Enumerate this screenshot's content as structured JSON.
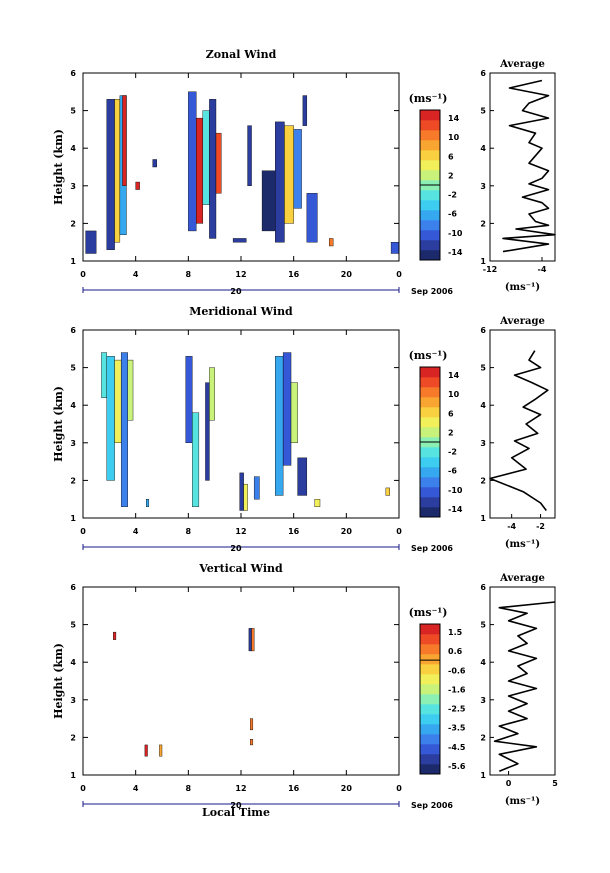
{
  "chart_data": [
    {
      "type": "heatmap",
      "id": "zonal",
      "title": "Zonal Wind",
      "ylabel": "Height (km)",
      "xlim": [
        0,
        24
      ],
      "ylim": [
        1,
        6
      ],
      "xticks": [
        "0",
        "4",
        "8",
        "12",
        "16",
        "20",
        "0"
      ],
      "yticks": [
        "1",
        "2",
        "3",
        "4",
        "5",
        "6"
      ],
      "date_label": "20",
      "month_label": "Sep 2006",
      "colorbar": {
        "unit": "(ms⁻¹)",
        "ticks": [
          "14",
          "10",
          "6",
          "2",
          "-2",
          "-6",
          "-10",
          "-14"
        ],
        "min": -16,
        "max": 16
      },
      "blocks": [
        {
          "x": [
            0.2,
            1.0
          ],
          "y": [
            1.2,
            1.8
          ],
          "v": -12
        },
        {
          "x": [
            1.8,
            2.4
          ],
          "y": [
            1.3,
            5.3
          ],
          "v": -12
        },
        {
          "x": [
            2.4,
            2.8
          ],
          "y": [
            1.5,
            5.3
          ],
          "v": 6
        },
        {
          "x": [
            2.8,
            3.3
          ],
          "y": [
            1.7,
            5.4
          ],
          "v": -6
        },
        {
          "x": [
            3.0,
            3.3
          ],
          "y": [
            3.0,
            5.4
          ],
          "v": 16
        },
        {
          "x": [
            4.0,
            4.3
          ],
          "y": [
            2.9,
            3.1
          ],
          "v": 14
        },
        {
          "x": [
            5.3,
            5.6
          ],
          "y": [
            3.5,
            3.7
          ],
          "v": -12
        },
        {
          "x": [
            8.0,
            8.6
          ],
          "y": [
            1.8,
            5.5
          ],
          "v": -10
        },
        {
          "x": [
            8.6,
            9.1
          ],
          "y": [
            2.0,
            4.8
          ],
          "v": 16
        },
        {
          "x": [
            9.1,
            9.6
          ],
          "y": [
            2.5,
            5.0
          ],
          "v": -2
        },
        {
          "x": [
            9.6,
            10.1
          ],
          "y": [
            1.6,
            5.3
          ],
          "v": -12
        },
        {
          "x": [
            10.1,
            10.5
          ],
          "y": [
            2.8,
            4.4
          ],
          "v": 12
        },
        {
          "x": [
            11.4,
            12.4
          ],
          "y": [
            1.5,
            1.6
          ],
          "v": -12
        },
        {
          "x": [
            12.5,
            12.8
          ],
          "y": [
            3.0,
            4.6
          ],
          "v": -12
        },
        {
          "x": [
            13.6,
            14.6
          ],
          "y": [
            1.8,
            3.4
          ],
          "v": -14
        },
        {
          "x": [
            14.6,
            15.3
          ],
          "y": [
            1.5,
            4.7
          ],
          "v": -12
        },
        {
          "x": [
            15.3,
            16.0
          ],
          "y": [
            2.0,
            4.6
          ],
          "v": 6
        },
        {
          "x": [
            16.0,
            16.6
          ],
          "y": [
            2.4,
            4.5
          ],
          "v": -8
        },
        {
          "x": [
            16.7,
            17.0
          ],
          "y": [
            4.6,
            5.4
          ],
          "v": -12
        },
        {
          "x": [
            17.0,
            17.8
          ],
          "y": [
            1.5,
            2.8
          ],
          "v": -10
        },
        {
          "x": [
            18.7,
            19.0
          ],
          "y": [
            1.4,
            1.6
          ],
          "v": 10
        },
        {
          "x": [
            23.4,
            24.0
          ],
          "y": [
            1.2,
            1.5
          ],
          "v": -10
        }
      ],
      "profile": {
        "title": "Average",
        "xlabel": "(ms⁻¹)",
        "xlim": [
          -12,
          -2
        ],
        "xticks": [
          "-12",
          "-4"
        ],
        "yticks": [
          "1",
          "2",
          "3",
          "4",
          "5",
          "6"
        ],
        "x": [
          -10,
          -3,
          -10,
          -2,
          -8,
          -3,
          -5,
          -6,
          -3,
          -4,
          -7,
          -3,
          -6,
          -4,
          -3,
          -6,
          -5,
          -4,
          -6,
          -5,
          -9,
          -3,
          -7,
          -6,
          -3,
          -9,
          -4
        ],
        "y": [
          1.25,
          1.45,
          1.6,
          1.7,
          1.85,
          1.95,
          2.05,
          2.25,
          2.4,
          2.55,
          2.7,
          2.9,
          3.05,
          3.2,
          3.4,
          3.6,
          3.8,
          4.0,
          4.15,
          4.4,
          4.6,
          4.8,
          5.0,
          5.2,
          5.4,
          5.6,
          5.8
        ]
      }
    },
    {
      "type": "heatmap",
      "id": "meridional",
      "title": "Meridional Wind",
      "ylabel": "Height (km)",
      "xlim": [
        0,
        24
      ],
      "ylim": [
        1,
        6
      ],
      "xticks": [
        "0",
        "4",
        "8",
        "12",
        "16",
        "20",
        "0"
      ],
      "yticks": [
        "1",
        "2",
        "3",
        "4",
        "5",
        "6"
      ],
      "date_label": "20",
      "month_label": "Sep 2006",
      "colorbar": {
        "unit": "(ms⁻¹)",
        "ticks": [
          "14",
          "10",
          "6",
          "2",
          "-2",
          "-6",
          "-10",
          "-14"
        ],
        "min": -16,
        "max": 16
      },
      "blocks": [
        {
          "x": [
            1.4,
            1.8
          ],
          "y": [
            4.2,
            5.4
          ],
          "v": -2
        },
        {
          "x": [
            1.8,
            2.4
          ],
          "y": [
            2.0,
            5.3
          ],
          "v": -4
        },
        {
          "x": [
            2.4,
            2.9
          ],
          "y": [
            3.0,
            5.2
          ],
          "v": 4
        },
        {
          "x": [
            2.9,
            3.4
          ],
          "y": [
            1.3,
            5.4
          ],
          "v": -8
        },
        {
          "x": [
            3.4,
            3.8
          ],
          "y": [
            3.6,
            5.2
          ],
          "v": 2
        },
        {
          "x": [
            4.8,
            5.0
          ],
          "y": [
            1.3,
            1.5
          ],
          "v": -6
        },
        {
          "x": [
            7.8,
            8.3
          ],
          "y": [
            3.0,
            5.3
          ],
          "v": -10
        },
        {
          "x": [
            8.3,
            8.8
          ],
          "y": [
            1.3,
            3.8
          ],
          "v": -2
        },
        {
          "x": [
            9.3,
            9.6
          ],
          "y": [
            2.0,
            4.6
          ],
          "v": -12
        },
        {
          "x": [
            9.6,
            10.0
          ],
          "y": [
            3.6,
            5.0
          ],
          "v": 2
        },
        {
          "x": [
            11.9,
            12.2
          ],
          "y": [
            1.2,
            2.2
          ],
          "v": -12
        },
        {
          "x": [
            12.2,
            12.5
          ],
          "y": [
            1.2,
            1.9
          ],
          "v": 4
        },
        {
          "x": [
            13.0,
            13.4
          ],
          "y": [
            1.5,
            2.1
          ],
          "v": -8
        },
        {
          "x": [
            14.6,
            15.2
          ],
          "y": [
            1.6,
            5.3
          ],
          "v": -6
        },
        {
          "x": [
            15.2,
            15.8
          ],
          "y": [
            2.4,
            5.4
          ],
          "v": -10
        },
        {
          "x": [
            15.8,
            16.3
          ],
          "y": [
            3.0,
            4.6
          ],
          "v": 2
        },
        {
          "x": [
            16.3,
            17.0
          ],
          "y": [
            1.6,
            2.6
          ],
          "v": -12
        },
        {
          "x": [
            17.6,
            18.0
          ],
          "y": [
            1.3,
            1.5
          ],
          "v": 4
        },
        {
          "x": [
            23.0,
            23.3
          ],
          "y": [
            1.6,
            1.8
          ],
          "v": 6
        }
      ],
      "profile": {
        "title": "Average",
        "xlabel": "(ms⁻¹)",
        "xlim": [
          -5.5,
          -1
        ],
        "xticks": [
          "-4",
          "-2"
        ],
        "yticks": [
          "1",
          "2",
          "3",
          "4",
          "5",
          "6"
        ],
        "x": [
          -1.6,
          -2.0,
          -3.2,
          -5.5,
          -3.0,
          -4.0,
          -2.8,
          -3.8,
          -2.2,
          -3.0,
          -2.0,
          -3.2,
          -2.4,
          -1.5,
          -2.6,
          -3.8,
          -2.0,
          -2.8,
          -2.4
        ],
        "y": [
          1.2,
          1.4,
          1.7,
          2.05,
          2.3,
          2.6,
          2.85,
          3.05,
          3.25,
          3.5,
          3.75,
          3.95,
          4.15,
          4.4,
          4.6,
          4.8,
          5.0,
          5.2,
          5.45
        ]
      }
    },
    {
      "type": "heatmap",
      "id": "vertical",
      "title": "Vertical Wind",
      "ylabel": "Height (km)",
      "xlabel": "Local Time",
      "xlim": [
        0,
        24
      ],
      "ylim": [
        1,
        6
      ],
      "xticks": [
        "0",
        "4",
        "8",
        "12",
        "16",
        "20",
        "0"
      ],
      "yticks": [
        "1",
        "2",
        "3",
        "4",
        "5",
        "6"
      ],
      "date_label": "20",
      "month_label": "Sep 2006",
      "colorbar": {
        "unit": "(ms⁻¹)",
        "ticks": [
          "1.5",
          "0.6",
          "-0.6",
          "-1.6",
          "-2.5",
          "-3.5",
          "-4.5",
          "-5.6"
        ],
        "min": -6.0,
        "max": 1.9
      },
      "blocks": [
        {
          "x": [
            2.3,
            2.5
          ],
          "y": [
            4.6,
            4.8
          ],
          "v": 1.6
        },
        {
          "x": [
            4.7,
            4.9
          ],
          "y": [
            1.5,
            1.8
          ],
          "v": 1.6
        },
        {
          "x": [
            5.8,
            6.0
          ],
          "y": [
            1.5,
            1.8
          ],
          "v": 0.2
        },
        {
          "x": [
            12.6,
            12.8
          ],
          "y": [
            4.3,
            4.9
          ],
          "v": -5.0
        },
        {
          "x": [
            12.8,
            13.0
          ],
          "y": [
            4.3,
            4.9
          ],
          "v": 0.6
        },
        {
          "x": [
            12.7,
            12.9
          ],
          "y": [
            2.2,
            2.5
          ],
          "v": 0.8
        },
        {
          "x": [
            12.7,
            12.9
          ],
          "y": [
            1.8,
            1.95
          ],
          "v": 0.4
        }
      ],
      "profile": {
        "title": "Average",
        "xlabel": "(ms⁻¹)",
        "xlim": [
          -2,
          5
        ],
        "xticks": [
          "0",
          "5"
        ],
        "yticks": [
          "1",
          "2",
          "3",
          "4",
          "5",
          "6"
        ],
        "x": [
          -1,
          1,
          -1,
          3,
          -1.5,
          1,
          -1,
          2,
          0,
          2,
          0,
          3,
          0,
          2,
          1,
          3,
          0,
          2,
          1,
          3,
          0,
          2,
          -1,
          5
        ],
        "y": [
          1.1,
          1.3,
          1.55,
          1.75,
          1.9,
          2.1,
          2.3,
          2.5,
          2.7,
          2.9,
          3.1,
          3.3,
          3.5,
          3.7,
          3.9,
          4.1,
          4.3,
          4.5,
          4.7,
          4.9,
          5.1,
          5.3,
          5.45,
          5.6
        ]
      }
    }
  ]
}
